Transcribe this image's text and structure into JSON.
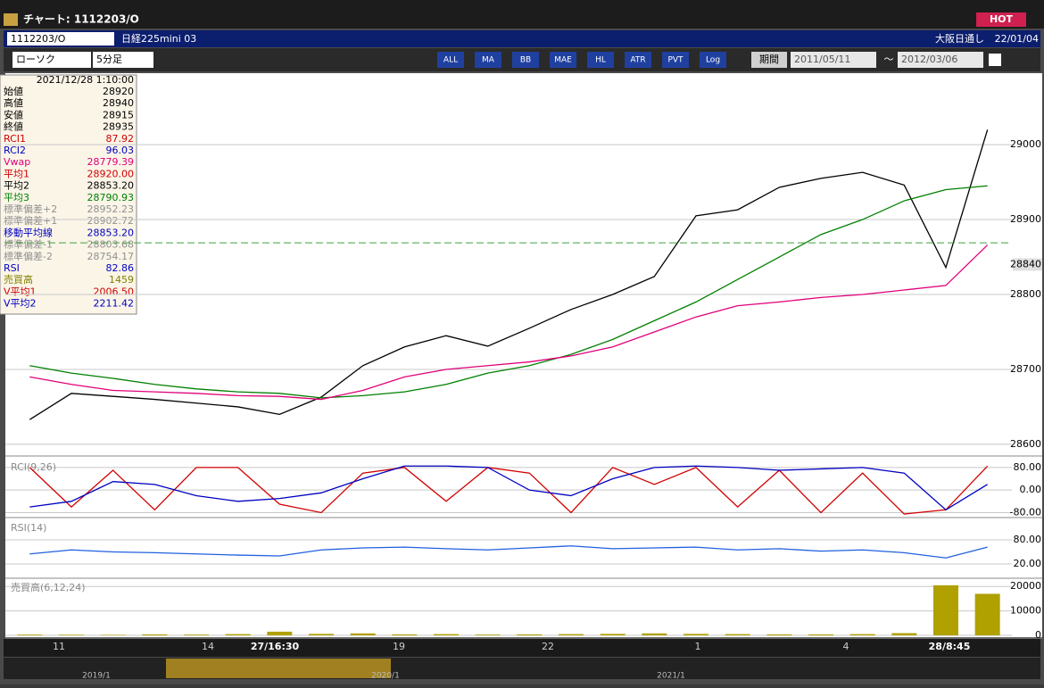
{
  "window": {
    "title": "チャート: 1112203/O",
    "hot": "HOT"
  },
  "toolbar": {
    "code": "1112203/O",
    "name": "日経225mini 03",
    "session": "大阪日通し",
    "date": "22/01/04",
    "chart_type": "ローソク",
    "interval": "5分足",
    "tools": [
      "ALL",
      "MA",
      "BB",
      "MAE",
      "HL",
      "ATR",
      "PVT",
      "Log"
    ],
    "period": "期間",
    "from": "2011/05/11",
    "tilde": "〜",
    "to": "2012/03/06"
  },
  "info": {
    "datetime": "2021/12/28 1:10:00",
    "rows": [
      {
        "label": "始値",
        "value": "28920",
        "color": "#000000"
      },
      {
        "label": "高値",
        "value": "28940",
        "color": "#000000"
      },
      {
        "label": "安値",
        "value": "28915",
        "color": "#000000"
      },
      {
        "label": "終値",
        "value": "28935",
        "color": "#000000"
      },
      {
        "label": "RCI1",
        "value": "87.92",
        "color": "#d00000"
      },
      {
        "label": "RCI2",
        "value": "96.03",
        "color": "#0000c0"
      },
      {
        "label": "Vwap",
        "value": "28779.39",
        "color": "#e0007a"
      },
      {
        "label": "平均1",
        "value": "28920.00",
        "color": "#d00000"
      },
      {
        "label": "平均2",
        "value": "28853.20",
        "color": "#000000"
      },
      {
        "label": "平均3",
        "value": "28790.93",
        "color": "#008000"
      },
      {
        "label": "標準偏差+2",
        "value": "28952.23",
        "color": "#909090"
      },
      {
        "label": "標準偏差+1",
        "value": "28902.72",
        "color": "#909090"
      },
      {
        "label": "移動平均線",
        "value": "28853.20",
        "color": "#0000c0"
      },
      {
        "label": "標準偏差-1",
        "value": "28803.68",
        "color": "#909090"
      },
      {
        "label": "標準偏差-2",
        "value": "28754.17",
        "color": "#909090"
      },
      {
        "label": "RSI",
        "value": "82.86",
        "color": "#0000c0"
      },
      {
        "label": "売買高",
        "value": "1459",
        "color": "#808000"
      },
      {
        "label": "V平均1",
        "value": "2006.50",
        "color": "#d00000"
      },
      {
        "label": "V平均2",
        "value": "2211.42",
        "color": "#0000c0"
      }
    ]
  },
  "chart_data": [
    {
      "type": "line",
      "ylim": [
        28588,
        29093
      ],
      "yticks": [
        28600,
        28700,
        28800,
        28900,
        29000
      ],
      "current": 28840,
      "reference_line": 28869,
      "series": [
        {
          "color": "#000000",
          "values": [
            28633,
            28668,
            28664,
            28660,
            28655,
            28650,
            28640,
            28663,
            28705,
            28730,
            28745,
            28731,
            28755,
            28780,
            28800,
            28824,
            28905,
            28913,
            28943,
            28955,
            28963,
            28946,
            28836,
            29020
          ]
        },
        {
          "color": "#008000",
          "values": [
            28705,
            28695,
            28688,
            28680,
            28674,
            28670,
            28668,
            28662,
            28665,
            28670,
            28680,
            28695,
            28705,
            28720,
            28740,
            28765,
            28790,
            28820,
            28850,
            28880,
            28900,
            28925,
            28940,
            28945
          ]
        },
        {
          "color": "#e0007a",
          "values": [
            28690,
            28680,
            28672,
            28670,
            28668,
            28665,
            28664,
            28660,
            28672,
            28690,
            28700,
            28705,
            28710,
            28718,
            28730,
            28750,
            28770,
            28785,
            28790,
            28796,
            28800,
            28806,
            28812,
            28866
          ]
        }
      ]
    },
    {
      "type": "line",
      "title": "RCI(9,26)",
      "ylim": [
        -88,
        108
      ],
      "yticks": [
        {
          "value": 80,
          "label": "80.00"
        },
        {
          "value": 0,
          "label": "0.00"
        },
        {
          "value": -80,
          "label": "-80.00"
        }
      ],
      "series": [
        {
          "color": "#d00000",
          "values": [
            80,
            -60,
            70,
            -70,
            80,
            80,
            -50,
            -80,
            60,
            80,
            -40,
            80,
            60,
            -80,
            80,
            20,
            80,
            -60,
            70,
            -80,
            60,
            -85,
            -70,
            85
          ]
        },
        {
          "color": "#0000c0",
          "values": [
            -60,
            -40,
            30,
            20,
            -20,
            -40,
            -30,
            -10,
            40,
            85,
            85,
            80,
            0,
            -20,
            40,
            80,
            85,
            80,
            70,
            75,
            80,
            60,
            -70,
            20
          ]
        }
      ]
    },
    {
      "type": "line",
      "title": "RSI(14)",
      "ylim": [
        -9,
        129
      ],
      "yticks": [
        {
          "value": 80,
          "label": "80.00"
        },
        {
          "value": 20,
          "label": "20.00"
        }
      ],
      "series": [
        {
          "color": "#2060e0",
          "values": [
            45,
            55,
            50,
            48,
            45,
            42,
            40,
            55,
            60,
            62,
            58,
            55,
            60,
            65,
            58,
            60,
            62,
            55,
            58,
            52,
            55,
            48,
            35,
            62
          ]
        }
      ]
    },
    {
      "type": "bar",
      "title": "売買高(6,12,24)",
      "ylim": [
        0,
        22640
      ],
      "yticks": [
        0,
        10000,
        20000
      ],
      "series": [
        {
          "color": "#b0a000",
          "values": [
            300,
            250,
            200,
            400,
            300,
            500,
            1500,
            600,
            800,
            400,
            500,
            300,
            400,
            500,
            600,
            800,
            600,
            500,
            400,
            400,
            500,
            900,
            20500,
            17000
          ]
        }
      ]
    }
  ],
  "x_labels": [
    "11",
    "14",
    "27/16:30",
    "19",
    "22",
    "1",
    "4",
    "28/8:45"
  ],
  "scroll_labels": [
    "2019/1",
    "2020/1",
    "2021/1"
  ]
}
